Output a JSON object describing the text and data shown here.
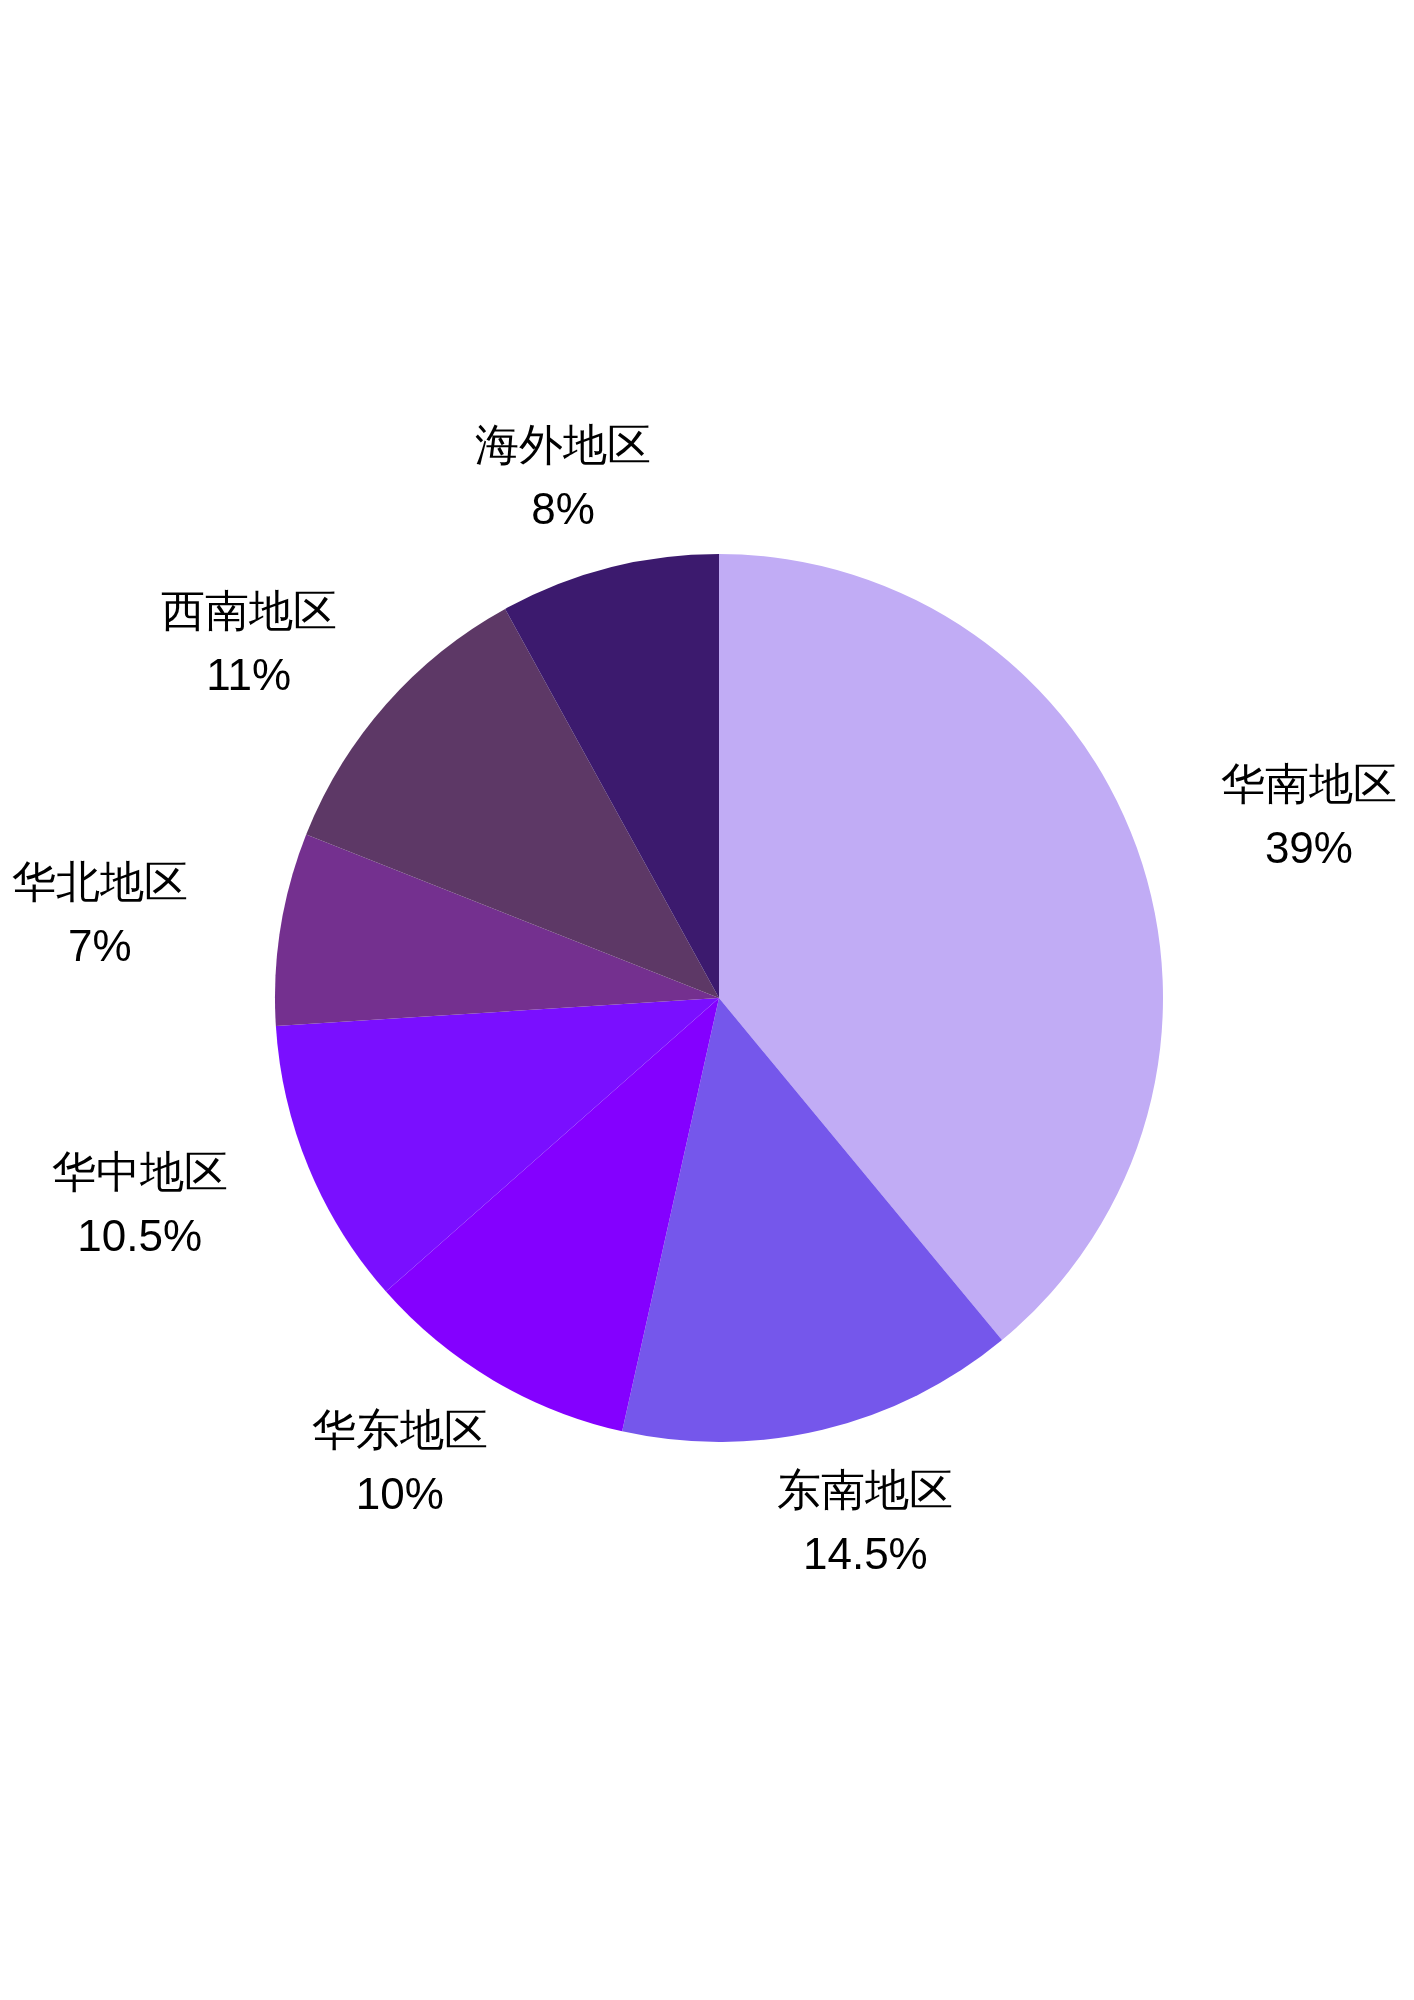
{
  "chart_data": {
    "type": "pie",
    "categories": [
      "华南地区",
      "东南地区",
      "华东地区",
      "华中地区",
      "华北地区",
      "西南地区",
      "海外地区"
    ],
    "values": [
      39,
      14.5,
      10,
      10.5,
      7,
      11,
      8
    ],
    "colors": [
      "#c1acf5",
      "#7557eb",
      "#8400ff",
      "#7a0fff",
      "#74308f",
      "#5d3866",
      "#3c1a6e"
    ],
    "value_labels": [
      "39%",
      "14.5%",
      "10%",
      "10.5%",
      "7%",
      "11%",
      "8%"
    ]
  }
}
